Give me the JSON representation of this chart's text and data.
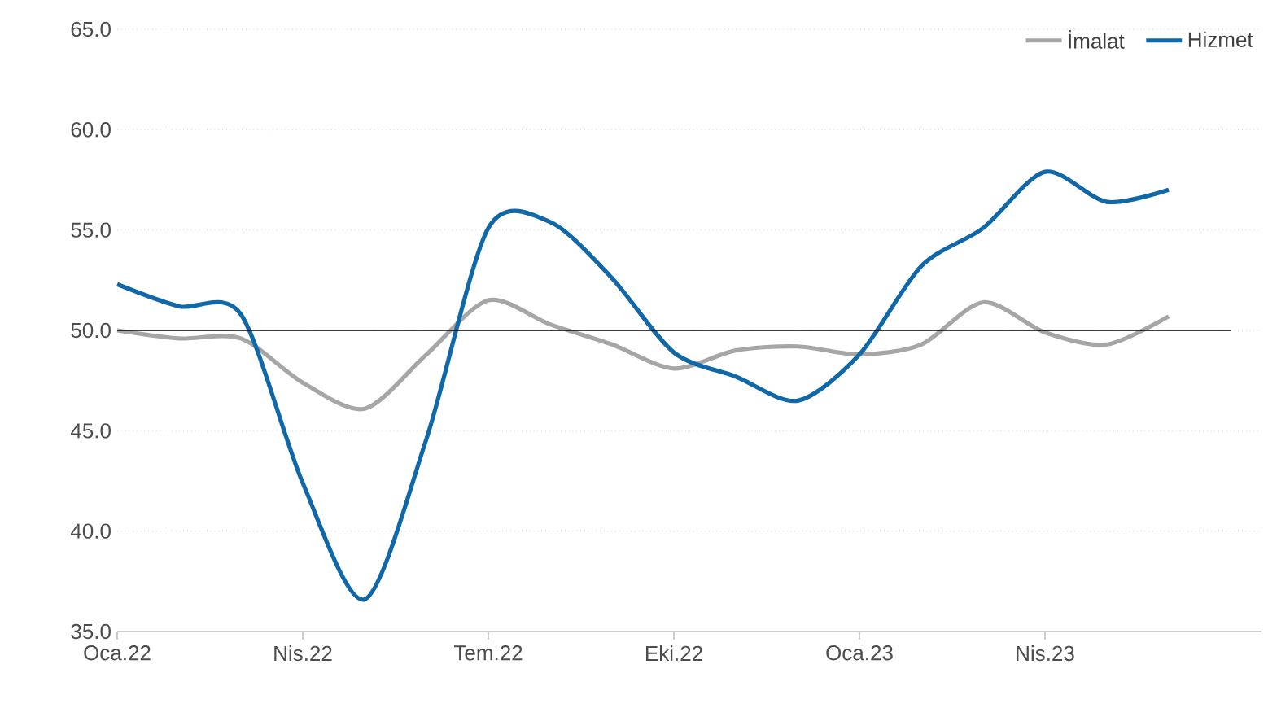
{
  "chart_data": {
    "type": "line",
    "categories": [
      "Oca.22",
      null,
      null,
      "Nis.22",
      null,
      null,
      "Tem.22",
      null,
      null,
      "Eki.22",
      null,
      null,
      "Oca.23",
      null,
      null,
      "Nis.23",
      null,
      null
    ],
    "series": [
      {
        "name": "İmalat",
        "color": "#a6a6a6",
        "values": [
          50.0,
          49.6,
          49.6,
          47.4,
          46.1,
          48.8,
          51.5,
          50.3,
          49.3,
          48.1,
          49.0,
          49.2,
          48.8,
          49.3,
          51.4,
          49.9,
          49.3,
          50.7
        ]
      },
      {
        "name": "Hizmet",
        "color": "#1068a8",
        "values": [
          52.3,
          51.2,
          50.8,
          42.4,
          36.6,
          44.6,
          55.1,
          55.4,
          52.6,
          48.9,
          47.7,
          46.5,
          48.8,
          53.2,
          55.1,
          57.9,
          56.4,
          57.0
        ]
      }
    ],
    "ylim": [
      35,
      65
    ],
    "yticks": [
      {
        "value": 35,
        "label": "35.0"
      },
      {
        "value": 40,
        "label": "40.0"
      },
      {
        "value": 45,
        "label": "45.0"
      },
      {
        "value": 50,
        "label": "50.0"
      },
      {
        "value": 55,
        "label": "55.0"
      },
      {
        "value": 60,
        "label": "60.0"
      },
      {
        "value": 65,
        "label": "65.0"
      }
    ],
    "ref_lines": [
      {
        "axis": "y",
        "value": 50,
        "color": "#000000"
      }
    ],
    "grid": "y",
    "legend": "top right",
    "marker": "none",
    "line_style": "solid"
  }
}
